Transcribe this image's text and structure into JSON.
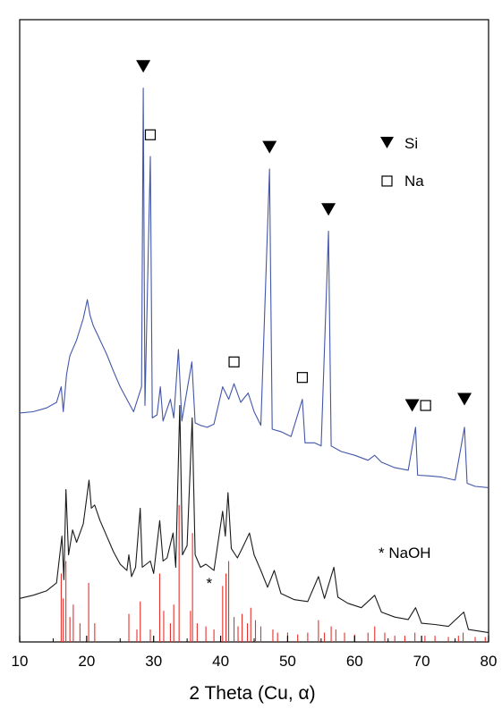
{
  "chart_data": {
    "type": "line",
    "xlabel": "2 Theta (Cu, α)",
    "ylabel": "",
    "xlim": [
      10,
      80
    ],
    "ylim": [
      0,
      100
    ],
    "x_ticks": [
      10,
      20,
      30,
      40,
      50,
      60,
      70,
      80
    ],
    "y_ticks_visible": false,
    "grid": false,
    "legend": {
      "placement": "top-right",
      "entries": [
        {
          "symbol": "filled-down-triangle",
          "label": "Si"
        },
        {
          "symbol": "open-square",
          "label": "Na"
        }
      ]
    },
    "annotations": [
      {
        "text": "* NaOH",
        "placement": "right, above lower pattern"
      }
    ],
    "series": [
      {
        "color": "#4356a8",
        "values_note": "upper XRD pattern",
        "points": [
          [
            10,
            36.8
          ],
          [
            12,
            37.0
          ],
          [
            14,
            37.6
          ],
          [
            15.5,
            38.5
          ],
          [
            16.2,
            41.0
          ],
          [
            16.5,
            37.0
          ],
          [
            17.0,
            43.0
          ],
          [
            17.5,
            46.0
          ],
          [
            18.5,
            48.5
          ],
          [
            19.5,
            52.0
          ],
          [
            20.1,
            55.0
          ],
          [
            20.5,
            52.5
          ],
          [
            21.0,
            50.8
          ],
          [
            22.0,
            48.5
          ],
          [
            23.0,
            46.2
          ],
          [
            24.0,
            43.5
          ],
          [
            25.0,
            41.0
          ],
          [
            26.0,
            39.0
          ],
          [
            27.0,
            37.0
          ],
          [
            28.2,
            41.0
          ],
          [
            28.45,
            89.0
          ],
          [
            28.7,
            38.0
          ],
          [
            29.5,
            78.0
          ],
          [
            29.8,
            36.0
          ],
          [
            30.5,
            36.5
          ],
          [
            31.0,
            41.0
          ],
          [
            31.4,
            35.5
          ],
          [
            32.5,
            39.0
          ],
          [
            33.0,
            36.0
          ],
          [
            33.7,
            47.0
          ],
          [
            34.2,
            35.5
          ],
          [
            35.7,
            45.0
          ],
          [
            36.2,
            35.2
          ],
          [
            37.0,
            34.8
          ],
          [
            38.0,
            34.5
          ],
          [
            39.0,
            35.0
          ],
          [
            40.3,
            41.0
          ],
          [
            41.2,
            39.0
          ],
          [
            42.0,
            41.5
          ],
          [
            43.0,
            38.5
          ],
          [
            44.1,
            40.0
          ],
          [
            45.0,
            37.0
          ],
          [
            46.0,
            34.8
          ],
          [
            47.3,
            76.0
          ],
          [
            47.7,
            34.2
          ],
          [
            49.0,
            33.8
          ],
          [
            50.5,
            33.0
          ],
          [
            52.2,
            39.0
          ],
          [
            52.6,
            32.0
          ],
          [
            54.0,
            32.0
          ],
          [
            55.0,
            31.5
          ],
          [
            56.1,
            66.0
          ],
          [
            56.5,
            31.5
          ],
          [
            58.0,
            30.6
          ],
          [
            60.0,
            30.0
          ],
          [
            62.0,
            29.2
          ],
          [
            63.0,
            30.0
          ],
          [
            64.0,
            28.9
          ],
          [
            66.0,
            28.0
          ],
          [
            68.0,
            27.6
          ],
          [
            69.1,
            34.5
          ],
          [
            69.4,
            26.8
          ],
          [
            71.0,
            26.7
          ],
          [
            73.0,
            26.5
          ],
          [
            75.0,
            26.0
          ],
          [
            76.4,
            34.5
          ],
          [
            76.8,
            25.5
          ],
          [
            78.0,
            25.0
          ],
          [
            80.0,
            24.8
          ]
        ]
      },
      {
        "color": "#1a1a1a",
        "values_note": "lower XRD pattern",
        "points": [
          [
            10,
            7.0
          ],
          [
            12,
            7.5
          ],
          [
            14,
            8.2
          ],
          [
            15.5,
            9.5
          ],
          [
            16.3,
            17.0
          ],
          [
            16.6,
            10.0
          ],
          [
            16.9,
            24.5
          ],
          [
            17.3,
            14.0
          ],
          [
            17.9,
            18.0
          ],
          [
            18.5,
            16.0
          ],
          [
            19.5,
            19.0
          ],
          [
            20.35,
            26.0
          ],
          [
            20.7,
            21.5
          ],
          [
            21.2,
            22.0
          ],
          [
            22.0,
            19.5
          ],
          [
            23.0,
            17.0
          ],
          [
            24.0,
            14.5
          ],
          [
            25.0,
            12.5
          ],
          [
            26.0,
            11.5
          ],
          [
            26.3,
            14.0
          ],
          [
            26.7,
            10.5
          ],
          [
            27.3,
            12.0
          ],
          [
            28.0,
            21.5
          ],
          [
            28.3,
            12.0
          ],
          [
            29.5,
            13.0
          ],
          [
            30.0,
            11.0
          ],
          [
            30.9,
            19.5
          ],
          [
            31.4,
            13.0
          ],
          [
            32.0,
            13.5
          ],
          [
            32.9,
            17.5
          ],
          [
            33.3,
            12.0
          ],
          [
            33.9,
            38.0
          ],
          [
            34.3,
            14.0
          ],
          [
            35.0,
            15.5
          ],
          [
            35.75,
            36.0
          ],
          [
            36.2,
            14.0
          ],
          [
            37.0,
            12.0
          ],
          [
            37.8,
            12.5
          ],
          [
            39.0,
            11.5
          ],
          [
            40.3,
            21.0
          ],
          [
            40.7,
            17.0
          ],
          [
            41.1,
            24.0
          ],
          [
            41.6,
            15.0
          ],
          [
            42.5,
            13.5
          ],
          [
            43.2,
            15.0
          ],
          [
            44.3,
            17.5
          ],
          [
            45.0,
            14.0
          ],
          [
            46.0,
            11.5
          ],
          [
            47.0,
            8.8
          ],
          [
            48.0,
            11.5
          ],
          [
            49.0,
            7.8
          ],
          [
            51.0,
            6.8
          ],
          [
            53.0,
            6.5
          ],
          [
            54.6,
            10.5
          ],
          [
            55.5,
            7.0
          ],
          [
            56.9,
            12.0
          ],
          [
            57.5,
            7.2
          ],
          [
            59.0,
            6.2
          ],
          [
            61.0,
            5.5
          ],
          [
            63.0,
            7.5
          ],
          [
            64.0,
            4.8
          ],
          [
            66.0,
            4.0
          ],
          [
            68.0,
            3.6
          ],
          [
            69.1,
            5.5
          ],
          [
            70.0,
            3.0
          ],
          [
            72.0,
            2.8
          ],
          [
            74.0,
            2.5
          ],
          [
            76.3,
            4.8
          ],
          [
            77.0,
            2.0
          ],
          [
            80.0,
            1.5
          ]
        ]
      },
      {
        "color": "#e8302c",
        "type": "stick",
        "values_note": "reference stick pattern (NaOH)",
        "points": [
          [
            16.2,
            11.0
          ],
          [
            16.5,
            7.0
          ],
          [
            16.9,
            13.0
          ],
          [
            17.5,
            4.0
          ],
          [
            18.0,
            6.0
          ],
          [
            19.0,
            3.0
          ],
          [
            20.3,
            9.5
          ],
          [
            21.2,
            3.0
          ],
          [
            26.3,
            4.5
          ],
          [
            27.5,
            2.0
          ],
          [
            28.0,
            6.5
          ],
          [
            29.5,
            2.0
          ],
          [
            30.9,
            11.0
          ],
          [
            31.5,
            5.0
          ],
          [
            32.5,
            3.0
          ],
          [
            33.0,
            6.0
          ],
          [
            33.8,
            22.0
          ],
          [
            35.5,
            5.0
          ],
          [
            35.8,
            17.5
          ],
          [
            36.5,
            3.0
          ],
          [
            37.8,
            2.5
          ],
          [
            39.0,
            2.0
          ],
          [
            40.3,
            9.0
          ],
          [
            40.8,
            11.0
          ],
          [
            41.2,
            13.0
          ],
          [
            42.0,
            4.0
          ],
          [
            42.6,
            2.5
          ],
          [
            43.2,
            4.5
          ],
          [
            44.0,
            3.0
          ],
          [
            44.5,
            5.5
          ],
          [
            45.2,
            3.5
          ],
          [
            46.0,
            2.5
          ],
          [
            47.8,
            2.0
          ],
          [
            48.5,
            1.5
          ],
          [
            50.0,
            1.5
          ],
          [
            51.5,
            1.2
          ],
          [
            53.0,
            1.5
          ],
          [
            54.6,
            3.5
          ],
          [
            55.5,
            1.5
          ],
          [
            56.5,
            2.5
          ],
          [
            57.2,
            2.0
          ],
          [
            58.5,
            1.5
          ],
          [
            60.0,
            1.2
          ],
          [
            62.0,
            1.5
          ],
          [
            63.0,
            2.5
          ],
          [
            64.5,
            1.5
          ],
          [
            66.0,
            1.0
          ],
          [
            67.5,
            1.0
          ],
          [
            69.0,
            1.5
          ],
          [
            70.5,
            1.0
          ],
          [
            72.0,
            1.0
          ],
          [
            74.0,
            0.8
          ],
          [
            75.5,
            1.0
          ],
          [
            76.2,
            1.5
          ],
          [
            78.0,
            0.8
          ],
          [
            79.5,
            0.8
          ]
        ]
      }
    ],
    "markers": [
      {
        "symbol": "filled-down-triangle",
        "x": 28.45,
        "y": 92.5
      },
      {
        "symbol": "open-square",
        "x": 29.5,
        "y": 81.5
      },
      {
        "symbol": "filled-down-triangle",
        "x": 47.3,
        "y": 79.5
      },
      {
        "symbol": "filled-down-triangle",
        "x": 56.1,
        "y": 69.5
      },
      {
        "symbol": "open-square",
        "x": 42.0,
        "y": 45.0
      },
      {
        "symbol": "open-square",
        "x": 52.2,
        "y": 42.5
      },
      {
        "symbol": "filled-down-triangle",
        "x": 68.6,
        "y": 38.0
      },
      {
        "symbol": "open-square",
        "x": 70.6,
        "y": 38.0
      },
      {
        "symbol": "filled-down-triangle",
        "x": 76.4,
        "y": 39.0
      },
      {
        "symbol": "asterisk",
        "x": 38.3,
        "y": 9.5
      }
    ]
  }
}
